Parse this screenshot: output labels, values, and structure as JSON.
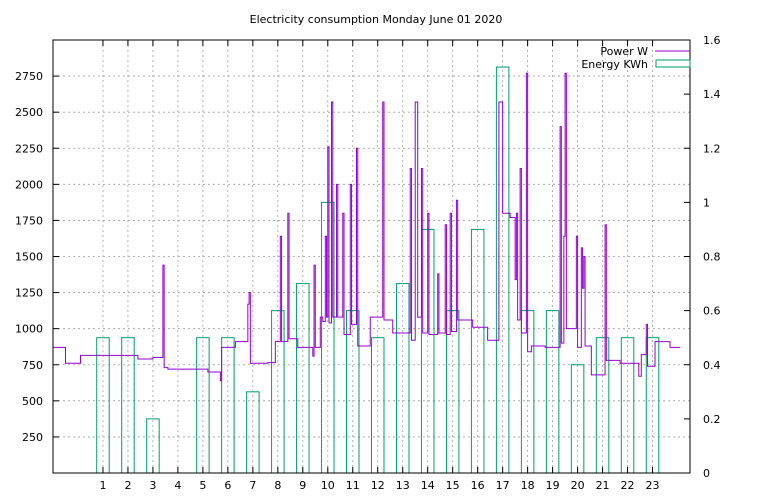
{
  "chart_data": {
    "type": "line",
    "title": "Electricity consumption Monday June 01 2020",
    "legend_position": "top-right",
    "grid": true,
    "colors": {
      "power": "#9400d3",
      "energy": "#009e73"
    },
    "x": {
      "lim": [
        -1,
        24.5
      ],
      "ticks": [
        1,
        2,
        3,
        4,
        5,
        6,
        7,
        8,
        9,
        10,
        11,
        12,
        13,
        14,
        15,
        16,
        17,
        18,
        19,
        20,
        21,
        22,
        23
      ]
    },
    "y_left": {
      "lim": [
        0,
        3000
      ],
      "ticks": [
        250,
        500,
        750,
        1000,
        1250,
        1500,
        1750,
        2000,
        2250,
        2500,
        2750
      ]
    },
    "y_right": {
      "lim": [
        0,
        1.6
      ],
      "ticks": [
        "0",
        "0.2",
        "0.4",
        "0.6",
        "0.8",
        "1",
        "1.2",
        "1.4",
        "1.6"
      ]
    },
    "series": [
      {
        "name": "Power W",
        "style": "steps",
        "axis": "left",
        "points": [
          [
            -1,
            870
          ],
          [
            -0.5,
            870
          ],
          [
            -0.5,
            760
          ],
          [
            0.1,
            760
          ],
          [
            0.1,
            815
          ],
          [
            1.4,
            815
          ],
          [
            1.4,
            815
          ],
          [
            2.4,
            815
          ],
          [
            2.4,
            790
          ],
          [
            3,
            790
          ],
          [
            3,
            800
          ],
          [
            3.4,
            800
          ],
          [
            3.4,
            1440
          ],
          [
            3.45,
            1440
          ],
          [
            3.45,
            730
          ],
          [
            3.6,
            730
          ],
          [
            3.6,
            720
          ],
          [
            4.5,
            720
          ],
          [
            4.5,
            720
          ],
          [
            5.2,
            720
          ],
          [
            5.2,
            700
          ],
          [
            5.7,
            700
          ],
          [
            5.7,
            640
          ],
          [
            5.75,
            640
          ],
          [
            5.75,
            870
          ],
          [
            6.3,
            870
          ],
          [
            6.3,
            910
          ],
          [
            6.8,
            910
          ],
          [
            6.8,
            1170
          ],
          [
            6.85,
            1170
          ],
          [
            6.85,
            1250
          ],
          [
            6.9,
            1250
          ],
          [
            6.9,
            760
          ],
          [
            7.6,
            760
          ],
          [
            7.6,
            765
          ],
          [
            7.9,
            765
          ],
          [
            7.9,
            910
          ],
          [
            8.1,
            910
          ],
          [
            8.1,
            1640
          ],
          [
            8.15,
            1640
          ],
          [
            8.15,
            910
          ],
          [
            8.4,
            910
          ],
          [
            8.4,
            1800
          ],
          [
            8.45,
            1800
          ],
          [
            8.45,
            930
          ],
          [
            8.8,
            930
          ],
          [
            8.8,
            870
          ],
          [
            9.4,
            870
          ],
          [
            9.4,
            810
          ],
          [
            9.45,
            810
          ],
          [
            9.45,
            1440
          ],
          [
            9.5,
            1440
          ],
          [
            9.5,
            870
          ],
          [
            9.7,
            870
          ],
          [
            9.7,
            1080
          ],
          [
            9.8,
            1080
          ],
          [
            9.8,
            1050
          ],
          [
            9.9,
            1050
          ],
          [
            9.9,
            1640
          ],
          [
            9.95,
            1640
          ],
          [
            9.95,
            1080
          ],
          [
            10.0,
            1080
          ],
          [
            10.0,
            2260
          ],
          [
            10.05,
            2260
          ],
          [
            10.05,
            1040
          ],
          [
            10.15,
            1040
          ],
          [
            10.15,
            2570
          ],
          [
            10.2,
            2570
          ],
          [
            10.2,
            1080
          ],
          [
            10.35,
            1080
          ],
          [
            10.35,
            2000
          ],
          [
            10.4,
            2000
          ],
          [
            10.4,
            1080
          ],
          [
            10.6,
            1080
          ],
          [
            10.6,
            1800
          ],
          [
            10.65,
            1800
          ],
          [
            10.65,
            960
          ],
          [
            10.9,
            960
          ],
          [
            10.9,
            2000
          ],
          [
            10.95,
            2000
          ],
          [
            10.95,
            1030
          ],
          [
            11.15,
            1030
          ],
          [
            11.15,
            2250
          ],
          [
            11.2,
            2250
          ],
          [
            11.2,
            880
          ],
          [
            11.7,
            880
          ],
          [
            11.7,
            1080
          ],
          [
            12.2,
            1080
          ],
          [
            12.2,
            2570
          ],
          [
            12.25,
            2570
          ],
          [
            12.25,
            1060
          ],
          [
            12.6,
            1060
          ],
          [
            12.6,
            970
          ],
          [
            13.3,
            970
          ],
          [
            13.3,
            2110
          ],
          [
            13.35,
            2110
          ],
          [
            13.35,
            920
          ],
          [
            13.5,
            920
          ],
          [
            13.5,
            2570
          ],
          [
            13.55,
            2570
          ],
          [
            13.55,
            2570
          ],
          [
            13.6,
            2570
          ],
          [
            13.6,
            1080
          ],
          [
            13.75,
            1080
          ],
          [
            13.75,
            2110
          ],
          [
            13.8,
            2110
          ],
          [
            13.8,
            970
          ],
          [
            14.0,
            970
          ],
          [
            14.0,
            1800
          ],
          [
            14.05,
            1800
          ],
          [
            14.05,
            960
          ],
          [
            14.4,
            960
          ],
          [
            14.4,
            1380
          ],
          [
            14.45,
            1380
          ],
          [
            14.45,
            970
          ],
          [
            14.7,
            970
          ],
          [
            14.7,
            1720
          ],
          [
            14.75,
            1720
          ],
          [
            14.75,
            960
          ],
          [
            14.9,
            960
          ],
          [
            14.9,
            1800
          ],
          [
            14.95,
            1800
          ],
          [
            14.95,
            980
          ],
          [
            15.15,
            980
          ],
          [
            15.15,
            1890
          ],
          [
            15.2,
            1890
          ],
          [
            15.2,
            1060
          ],
          [
            15.8,
            1060
          ],
          [
            15.8,
            1010
          ],
          [
            16.4,
            1010
          ],
          [
            16.4,
            920
          ],
          [
            16.85,
            920
          ],
          [
            16.85,
            2570
          ],
          [
            17.0,
            2570
          ],
          [
            17.0,
            1800
          ],
          [
            17.3,
            1800
          ],
          [
            17.3,
            1770
          ],
          [
            17.5,
            1770
          ],
          [
            17.5,
            1340
          ],
          [
            17.55,
            1340
          ],
          [
            17.55,
            1800
          ],
          [
            17.6,
            1800
          ],
          [
            17.6,
            1060
          ],
          [
            17.7,
            1060
          ],
          [
            17.7,
            2110
          ],
          [
            17.75,
            2110
          ],
          [
            17.75,
            970
          ],
          [
            17.95,
            970
          ],
          [
            17.95,
            2770
          ],
          [
            18.0,
            2770
          ],
          [
            18.0,
            840
          ],
          [
            18.15,
            840
          ],
          [
            18.15,
            880
          ],
          [
            18.7,
            880
          ],
          [
            18.7,
            870
          ],
          [
            19.3,
            870
          ],
          [
            19.3,
            2400
          ],
          [
            19.35,
            2400
          ],
          [
            19.35,
            900
          ],
          [
            19.45,
            900
          ],
          [
            19.45,
            1640
          ],
          [
            19.5,
            1640
          ],
          [
            19.5,
            2770
          ],
          [
            19.55,
            2770
          ],
          [
            19.55,
            1000
          ],
          [
            19.95,
            1000
          ],
          [
            19.95,
            1640
          ],
          [
            20.0,
            1640
          ],
          [
            20.0,
            870
          ],
          [
            20.15,
            870
          ],
          [
            20.15,
            1560
          ],
          [
            20.2,
            1560
          ],
          [
            20.2,
            1280
          ],
          [
            20.25,
            1280
          ],
          [
            20.25,
            1500
          ],
          [
            20.3,
            1500
          ],
          [
            20.3,
            880
          ],
          [
            20.55,
            880
          ],
          [
            20.55,
            680
          ],
          [
            21.1,
            680
          ],
          [
            21.1,
            1720
          ],
          [
            21.15,
            1720
          ],
          [
            21.15,
            780
          ],
          [
            21.7,
            780
          ],
          [
            21.7,
            760
          ],
          [
            22.45,
            760
          ],
          [
            22.45,
            670
          ],
          [
            22.55,
            670
          ],
          [
            22.55,
            820
          ],
          [
            22.75,
            820
          ],
          [
            22.75,
            1030
          ],
          [
            22.8,
            1030
          ],
          [
            22.8,
            740
          ],
          [
            23.1,
            740
          ],
          [
            23.1,
            910
          ],
          [
            23.7,
            910
          ],
          [
            23.7,
            870
          ],
          [
            24.1,
            870
          ]
        ]
      },
      {
        "name": "Energy KWh",
        "style": "boxes",
        "axis": "right",
        "boxes": [
          [
            1,
            0.5
          ],
          [
            2,
            0.5
          ],
          [
            3,
            0.2
          ],
          [
            4,
            0
          ],
          [
            5,
            0.5
          ],
          [
            6,
            0.5
          ],
          [
            7,
            0.3
          ],
          [
            8,
            0.6
          ],
          [
            9,
            0.7
          ],
          [
            10,
            1.0
          ],
          [
            11,
            0.6
          ],
          [
            12,
            0.5
          ],
          [
            13,
            0.7
          ],
          [
            14,
            0.9
          ],
          [
            15,
            0.6
          ],
          [
            16,
            0.9
          ],
          [
            17,
            1.5
          ],
          [
            18,
            0.6
          ],
          [
            19,
            0.6
          ],
          [
            20,
            0.4
          ],
          [
            21,
            0.5
          ],
          [
            22,
            0.5
          ],
          [
            23,
            0.5
          ]
        ]
      }
    ]
  }
}
